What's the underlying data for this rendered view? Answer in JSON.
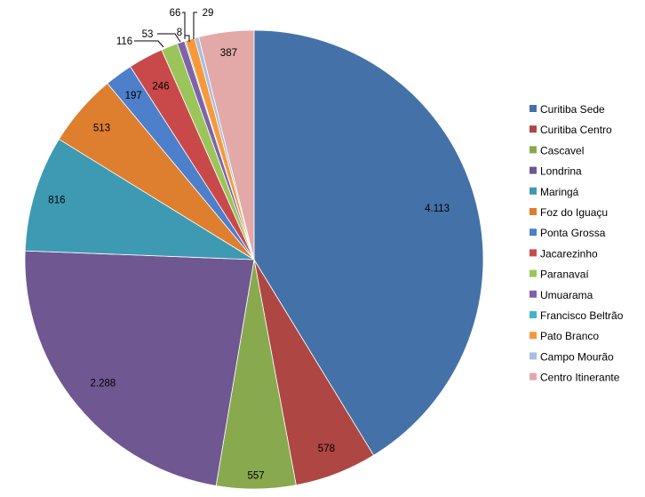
{
  "chart_data": {
    "type": "pie",
    "title": "",
    "legend_position": "right",
    "slices": [
      {
        "name": "Curitiba Sede",
        "value": 4113,
        "label": "4.113",
        "color": "#4472A8"
      },
      {
        "name": "Curitiba Centro",
        "value": 578,
        "label": "578",
        "color": "#AE4643"
      },
      {
        "name": "Cascavel",
        "value": 557,
        "label": "557",
        "color": "#88A94D"
      },
      {
        "name": "Londrina",
        "value": 2288,
        "label": "2.288",
        "color": "#6F5791"
      },
      {
        "name": "Maringá",
        "value": 816,
        "label": "816",
        "color": "#3D9AB2"
      },
      {
        "name": "Foz do Iguaçu",
        "value": 513,
        "label": "513",
        "color": "#DE7E2F"
      },
      {
        "name": "Ponta Grossa",
        "value": 197,
        "label": "197",
        "color": "#4D7FCA"
      },
      {
        "name": "Jacarezinho",
        "value": 246,
        "label": "246",
        "color": "#C9494A"
      },
      {
        "name": "Paranavaí",
        "value": 116,
        "label": "116",
        "color": "#9BC55A"
      },
      {
        "name": "Umuarama",
        "value": 53,
        "label": "53",
        "color": "#8062A8"
      },
      {
        "name": "Francisco Beltrão",
        "value": 8,
        "label": "8",
        "color": "#43B2CC"
      },
      {
        "name": "Pato Branco",
        "value": 66,
        "label": "66",
        "color": "#F7993A"
      },
      {
        "name": "Campo Mourão",
        "value": 29,
        "label": "29",
        "color": "#A8BEE2"
      },
      {
        "name": "Centro Itinerante",
        "value": 387,
        "label": "387",
        "color": "#E2A9A8"
      }
    ]
  }
}
